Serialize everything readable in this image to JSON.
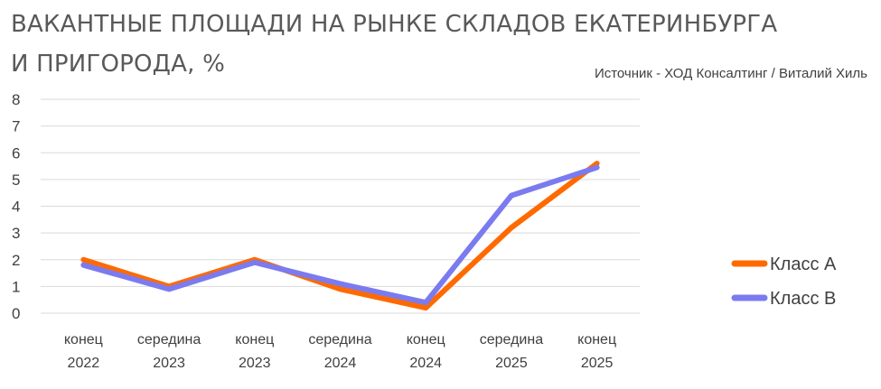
{
  "title_line1": "ВАКАНТНЫЕ ПЛОЩАДИ НА РЫНКЕ СКЛАДОВ ЕКАТЕРИНБУРГА",
  "title_line2": "И ПРИГОРОДА, %",
  "source": "Источник - ХОД Консалтинг / Виталий Хиль",
  "chart_data": {
    "type": "line",
    "categories": [
      [
        "конец",
        "2022"
      ],
      [
        "середина",
        "2023"
      ],
      [
        "конец",
        "2023"
      ],
      [
        "середина",
        "2024"
      ],
      [
        "конец",
        "2024"
      ],
      [
        "середина",
        "2025"
      ],
      [
        "конец",
        "2025"
      ]
    ],
    "ylim": [
      0,
      8
    ],
    "yticks": [
      0,
      1,
      2,
      3,
      4,
      5,
      6,
      7,
      8
    ],
    "grid": true,
    "legend_position": "right",
    "series": [
      {
        "name": "Класс А",
        "color": "#FF6A00",
        "values": [
          2.0,
          1.0,
          2.0,
          0.9,
          0.2,
          3.2,
          5.6
        ]
      },
      {
        "name": "Класс В",
        "color": "#7B7BEF",
        "values": [
          1.8,
          0.9,
          1.9,
          1.1,
          0.4,
          4.4,
          5.45
        ]
      }
    ]
  }
}
